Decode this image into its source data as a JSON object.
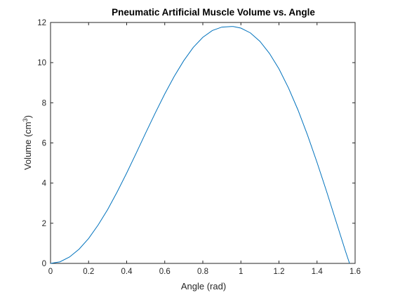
{
  "chart_data": {
    "type": "line",
    "title": "Pneumatic Artificial Muscle Volume vs. Angle",
    "xlabel": "Angle (rad)",
    "ylabel_main": "Volume (cm",
    "ylabel_sup": "3",
    "ylabel_close": ")",
    "xlim": [
      0,
      1.6
    ],
    "ylim": [
      0,
      12
    ],
    "xticks": [
      0,
      0.2,
      0.4,
      0.6,
      0.8,
      1.0,
      1.2,
      1.4,
      1.6
    ],
    "xtick_labels": [
      "0",
      "0.2",
      "0.4",
      "0.6",
      "0.8",
      "1",
      "1.2",
      "1.4",
      "1.6"
    ],
    "yticks": [
      0,
      2,
      4,
      6,
      8,
      10,
      12
    ],
    "ytick_labels": [
      "0",
      "2",
      "4",
      "6",
      "8",
      "10",
      "12"
    ],
    "grid": false,
    "series": [
      {
        "color": "#0072BD",
        "x": [
          0,
          0.05,
          0.1,
          0.15,
          0.2,
          0.25,
          0.3,
          0.35,
          0.4,
          0.45,
          0.5,
          0.55,
          0.6,
          0.65,
          0.7,
          0.75,
          0.8,
          0.85,
          0.9,
          0.95,
          0.96,
          1.0,
          1.05,
          1.1,
          1.15,
          1.2,
          1.25,
          1.3,
          1.35,
          1.4,
          1.45,
          1.5,
          1.55,
          1.5708
        ],
        "y": [
          0,
          0.08,
          0.32,
          0.71,
          1.24,
          1.91,
          2.68,
          3.56,
          4.5,
          5.49,
          6.5,
          7.49,
          8.44,
          9.32,
          10.1,
          10.76,
          11.26,
          11.6,
          11.77,
          11.8,
          11.8,
          11.72,
          11.48,
          11.06,
          10.46,
          9.69,
          8.74,
          7.64,
          6.39,
          5.03,
          3.59,
          2.09,
          0.59,
          0
        ]
      }
    ]
  }
}
